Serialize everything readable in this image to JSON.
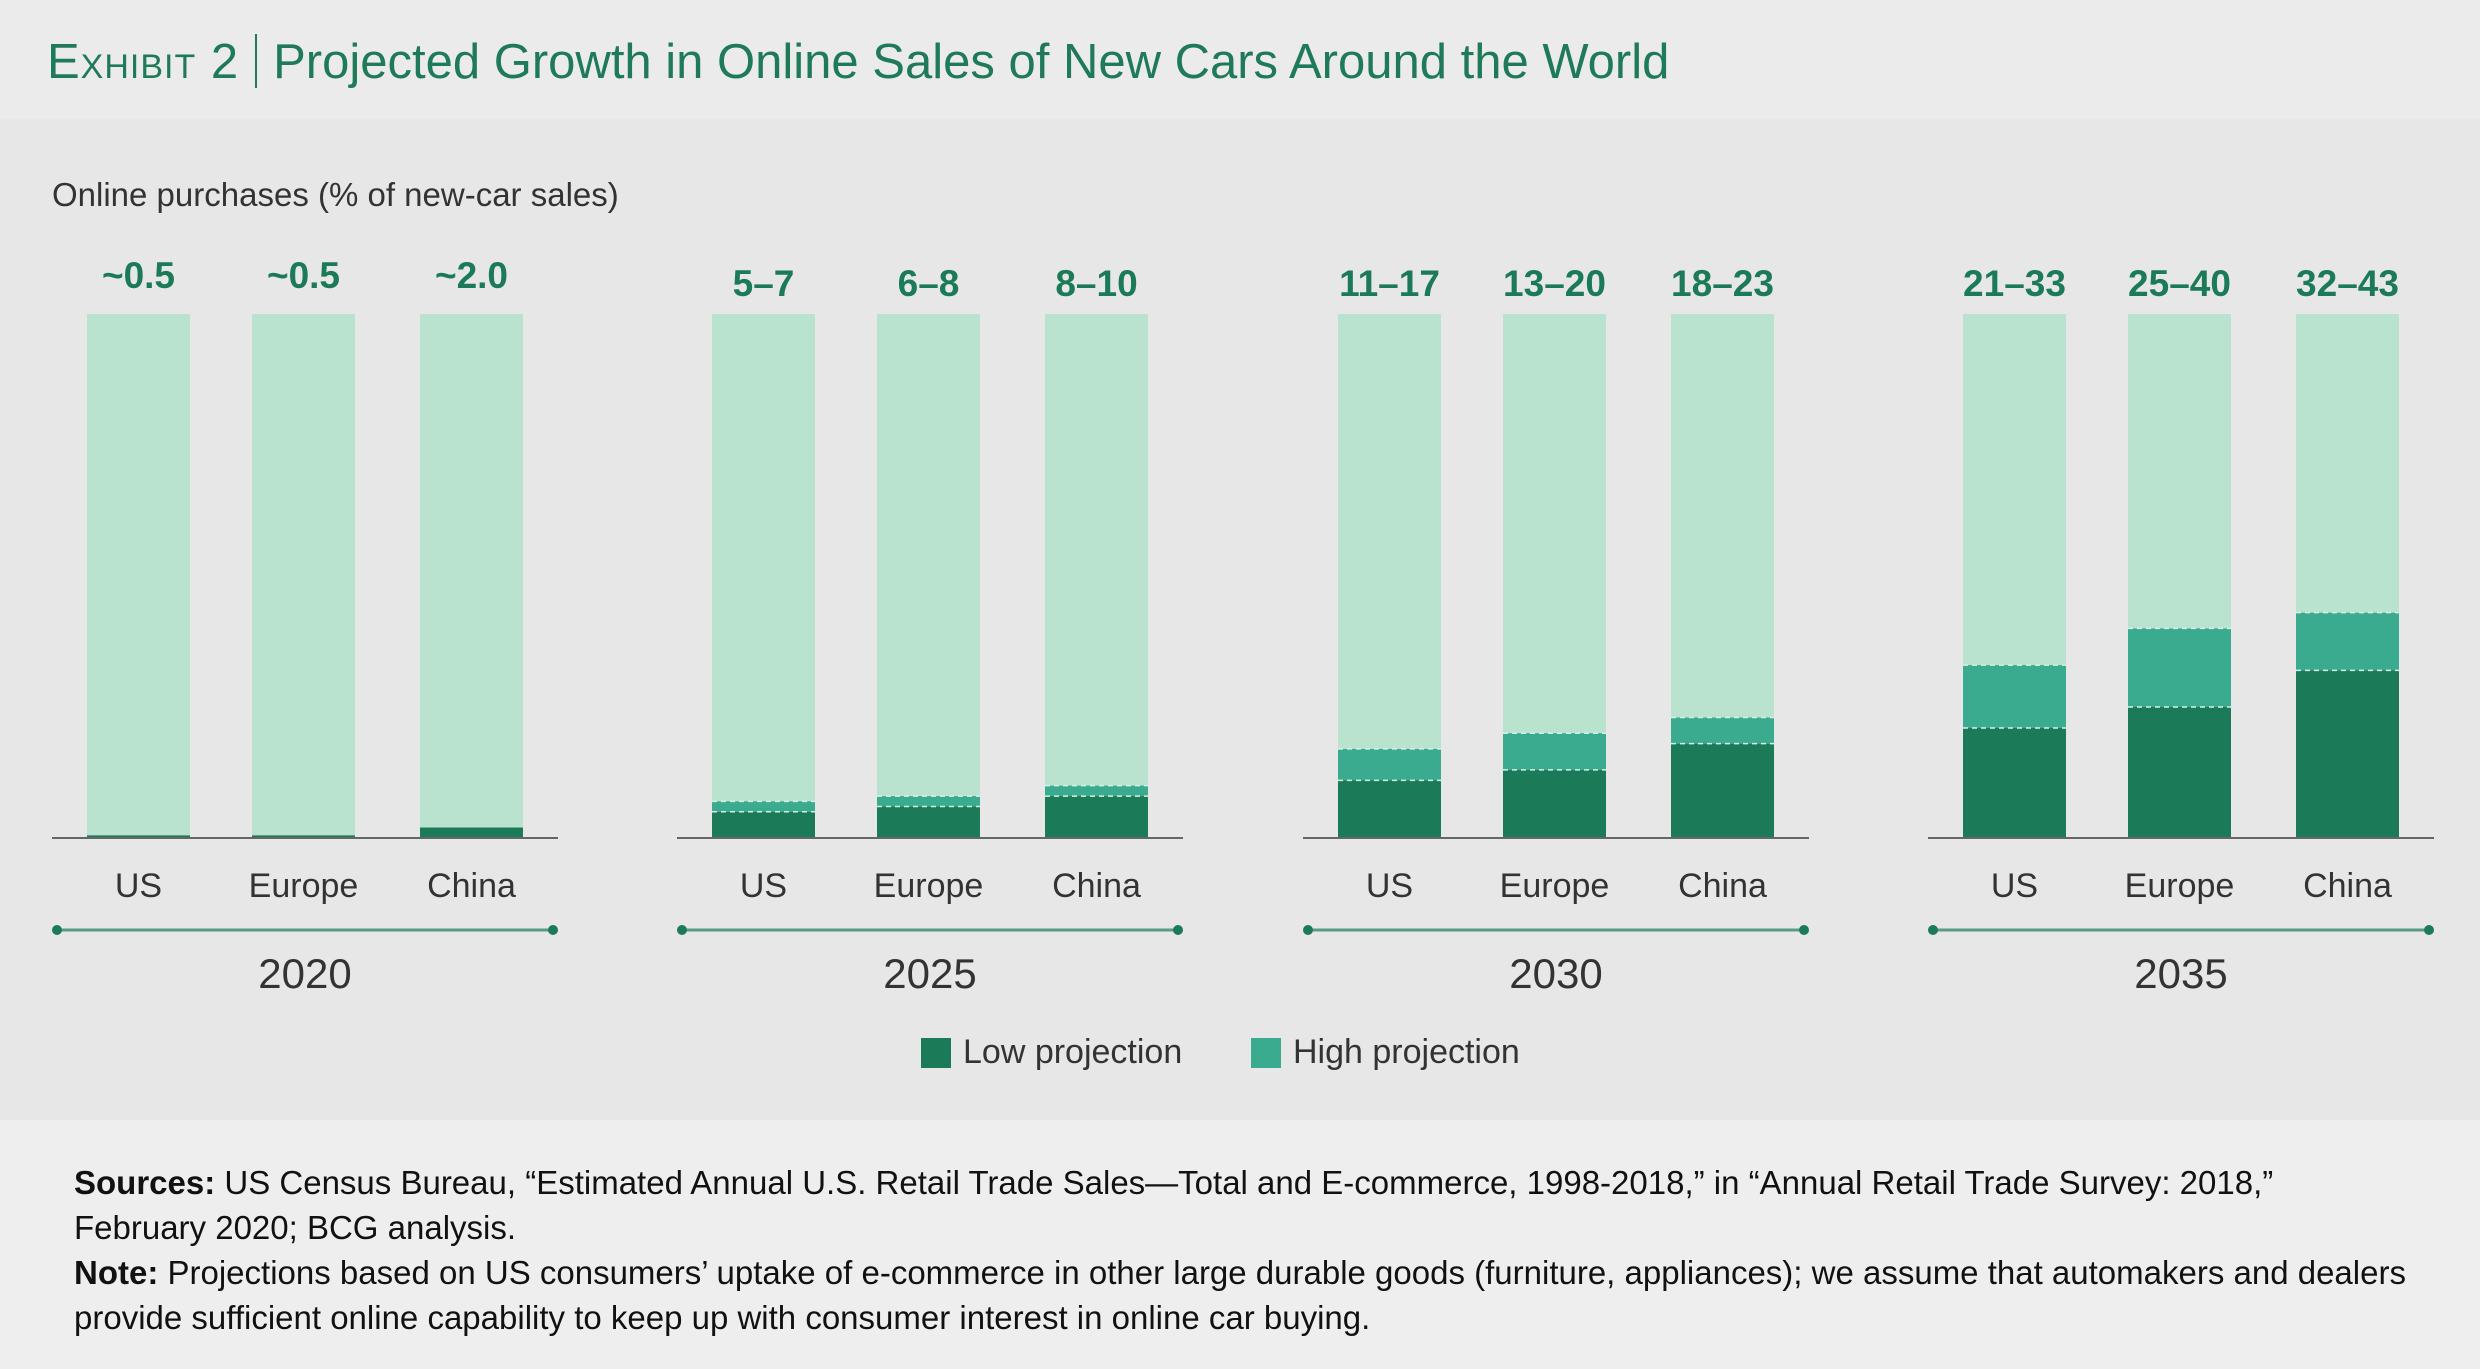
{
  "header": {
    "exhibit": "Exhibit 2",
    "title": "Projected Growth in Online Sales of New Cars Around the World"
  },
  "colors": {
    "low": "#1b7a58",
    "high": "#3aab8e",
    "remainder": "#b9e2cf",
    "title": "#1e7a58",
    "label": "#1b7a58"
  },
  "chart_data": {
    "type": "bar",
    "stacked": true,
    "ylabel": "Online purchases (% of new-car sales)",
    "ylim": [
      0,
      100
    ],
    "grid": false,
    "legend_position": "bottom-center",
    "categories": [
      "US",
      "Europe",
      "China"
    ],
    "groups": [
      {
        "year": "2020",
        "labels": [
          "~0.5",
          "~0.5",
          "~2.0"
        ],
        "low": [
          0.5,
          0.5,
          2.0
        ],
        "high": [
          0.5,
          0.5,
          2.0
        ]
      },
      {
        "year": "2025",
        "labels": [
          "5–7",
          "6–8",
          "8–10"
        ],
        "low": [
          5,
          6,
          8
        ],
        "high": [
          7,
          8,
          10
        ]
      },
      {
        "year": "2030",
        "labels": [
          "11–17",
          "13–20",
          "18–23"
        ],
        "low": [
          11,
          13,
          18
        ],
        "high": [
          17,
          20,
          23
        ]
      },
      {
        "year": "2035",
        "labels": [
          "21–33",
          "25–40",
          "32–43"
        ],
        "low": [
          21,
          25,
          32
        ],
        "high": [
          33,
          40,
          43
        ]
      }
    ],
    "series": [
      {
        "name": "Low projection"
      },
      {
        "name": "High projection"
      }
    ]
  },
  "footer": {
    "sources_label": "Sources:",
    "sources_text": " US Census Bureau, “Estimated Annual U.S. Retail Trade Sales—Total and E-commerce, 1998-2018,” in “Annual Retail Trade Survey: 2018,” February 2020; BCG analysis.",
    "note_label": "Note:",
    "note_text": " Projections based on US consumers’ uptake of e-commerce in other large durable goods (furniture, appliances); we assume that automakers and dealers provide sufficient online capability to keep up with consumer interest in online car buying."
  }
}
